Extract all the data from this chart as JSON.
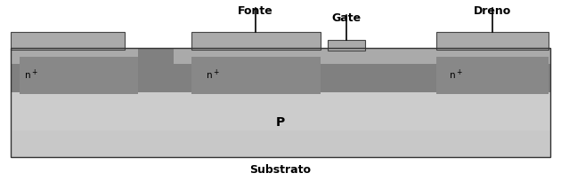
{
  "fig_width": 6.3,
  "fig_height": 2.05,
  "dpi": 100,
  "bg_color": "#ffffff",
  "colors": {
    "substrate_bottom": "#c0c0c0",
    "p_epi": "#cccccc",
    "dark_band": "#808080",
    "light_strip": "#aaaaaa",
    "n_plus": "#909090",
    "metal_top": "#aaaaaa",
    "gate_metal": "#aaaaaa"
  },
  "labels": {
    "fonte": "Fonte",
    "gate": "Gate",
    "dreno": "Dreno",
    "p": "P",
    "substrato": "Substrato"
  },
  "fontsize_label": 9,
  "fontsize_region": 9
}
